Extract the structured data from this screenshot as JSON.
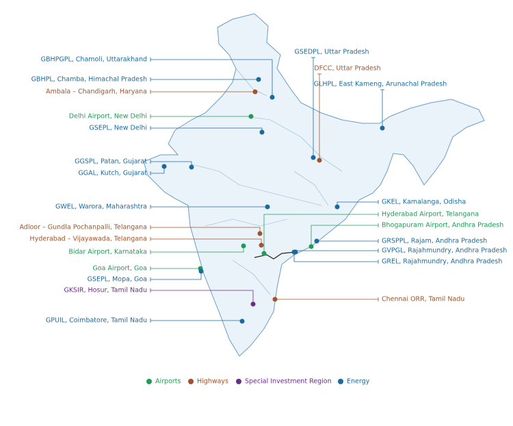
{
  "legend": [
    {
      "label": "Airports",
      "color": "#1f9d55"
    },
    {
      "label": "Highways",
      "color": "#a3532a"
    },
    {
      "label": "Special Investment Region",
      "color": "#6b2d8a"
    },
    {
      "label": "Energy",
      "color": "#1a6aa0"
    }
  ],
  "sites": [
    "GBHPGPL, Chamoli, Uttarakhand",
    "GBHPL, Chamba, Himachal Pradesh",
    "Ambala – Chandigarh, Haryana",
    "Delhi Airport, New Delhi",
    "GSEPL, New Delhi",
    "GGSPL, Patan, Gujarat",
    "GGAL, Kutch, Gujarat",
    "GWEL, Warora, Maharashtra",
    "Adloor – Gundla Pochanpalli, Telangana",
    "Hyderabad – Vijayawada, Telangana",
    "Bidar Airport, Karnataka",
    "Goa Airport, Goa",
    "GSEPL, Mopa, Goa",
    "GKSIR, Hosur, Tamil Nadu",
    "GPUIL, Coimbatore, Tamil Nadu",
    "GSEDPL, Uttar Pradesh",
    "DFCC, Uttar Pradesh",
    "GLHPL, East Kameng, Arunachal Pradesh",
    "GKEL, Kamalanga, Odisha",
    "Hyderabad Airport, Telangana",
    "Bhogapuram Airport, Andhra Pradesh",
    "GRSPPL, Rajam, Andhra Pradesh",
    "GVPGL, Rajahmundry, Andhra Pradesh",
    "GREL, Rajahmundry, Andhra Pradesh",
    "Chennai ORR, Tamil Nadu"
  ]
}
